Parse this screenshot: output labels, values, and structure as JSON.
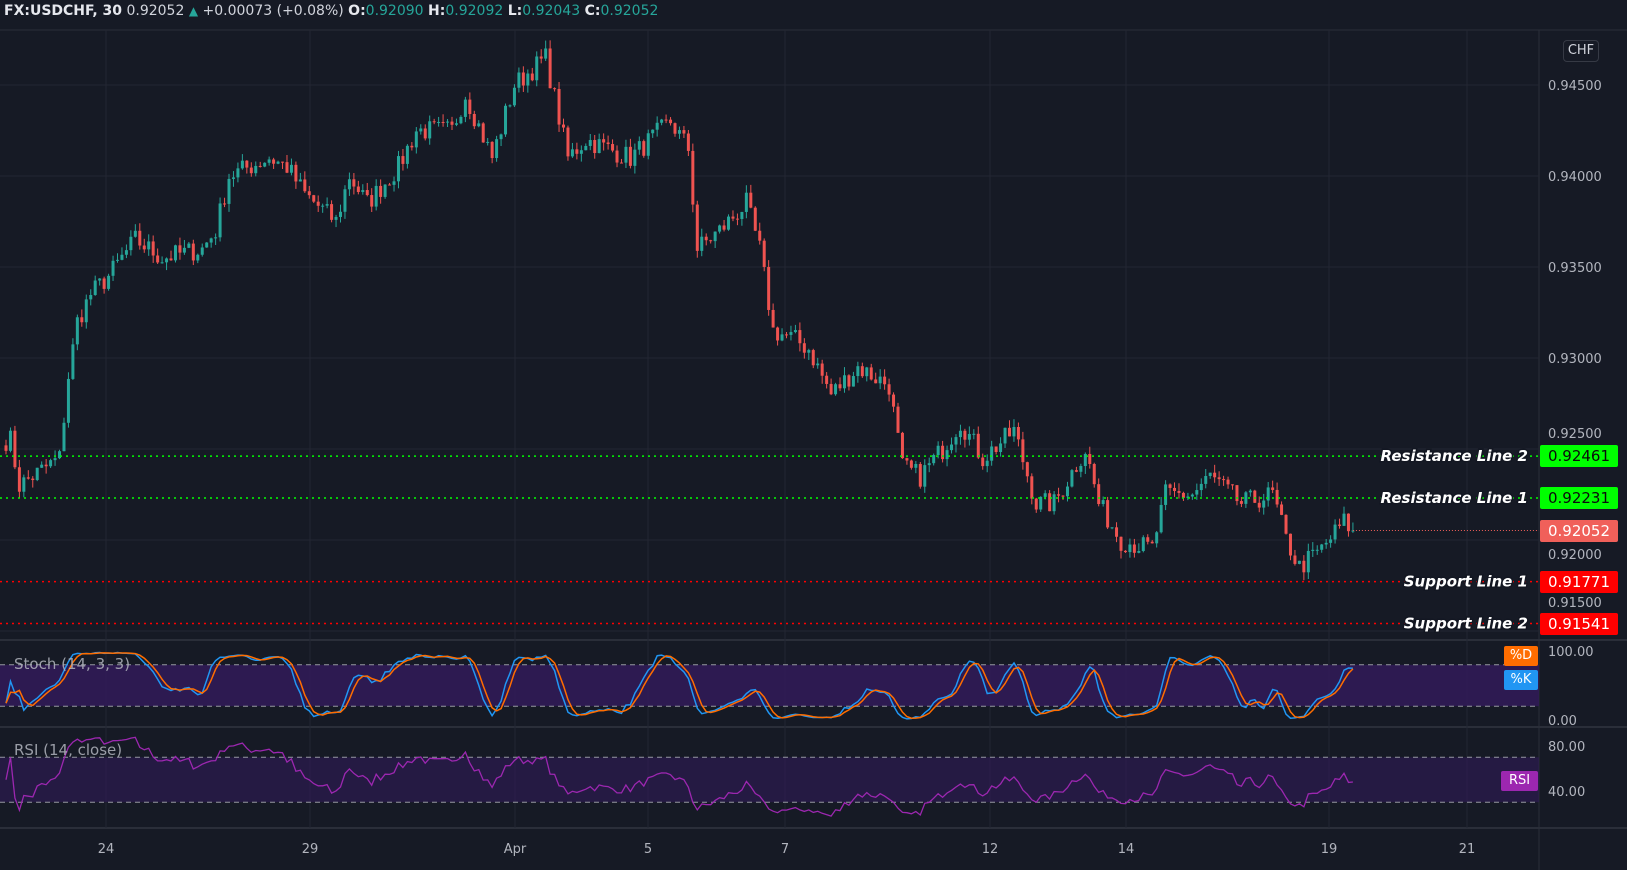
{
  "header": {
    "symbol": "FX:USDCHF, 30",
    "last": "0.92052",
    "change": "+0.00073 (+0.08%)",
    "o_label": "O:",
    "o": "0.92090",
    "h_label": "H:",
    "h": "0.92092",
    "l_label": "L:",
    "l": "0.92043",
    "c_label": "C:",
    "c": "0.92052"
  },
  "currency_badge": "CHF",
  "colors": {
    "up": "#26a69a",
    "down": "#ef5350",
    "resistance": "#00ff00",
    "support": "#ff0000",
    "last_price": "#f0605a",
    "stoch_k": "#2196f3",
    "stoch_d": "#ff6d00",
    "rsi": "#9c27b0",
    "band_fill": "#311b59"
  },
  "price_axis": {
    "ticks": [
      "0.94500",
      "0.94000",
      "0.93500",
      "0.93000",
      "0.92500",
      "0.92000",
      "0.91500"
    ]
  },
  "time_axis": {
    "ticks": [
      "24",
      "29",
      "Apr",
      "5",
      "7",
      "12",
      "14",
      "19",
      "21"
    ]
  },
  "levels": [
    {
      "label": "Resistance Line 2",
      "value": "0.92461",
      "type": "resistance"
    },
    {
      "label": "Resistance Line 1",
      "value": "0.92231",
      "type": "resistance"
    },
    {
      "label": "Support Line 1",
      "value": "0.91771",
      "type": "support"
    },
    {
      "label": "Support Line 2",
      "value": "0.91541",
      "type": "support"
    }
  ],
  "last_price_tag": "0.92052",
  "stoch": {
    "title": "Stoch (14, 3, 3)",
    "d_tag": "%D",
    "k_tag": "%K",
    "ticks": [
      "100.00",
      "0.00"
    ],
    "bands": [
      80,
      20
    ]
  },
  "rsi": {
    "title": "RSI (14, close)",
    "tag": "RSI",
    "ticks": [
      "80.00",
      "40.00"
    ],
    "bands": [
      70,
      30
    ]
  },
  "chart_data": {
    "type": "candlestick",
    "symbol": "FX:USDCHF",
    "interval": "30",
    "ylim": [
      0.9145,
      0.9475
    ],
    "close_path_by_bar": [
      [
        1,
        0.9255
      ],
      [
        3,
        0.923
      ],
      [
        12,
        0.9245
      ],
      [
        14,
        0.929
      ],
      [
        16,
        0.932
      ],
      [
        19,
        0.9335
      ],
      [
        23,
        0.9345
      ],
      [
        29,
        0.9365
      ],
      [
        35,
        0.9355
      ],
      [
        44,
        0.936
      ],
      [
        47,
        0.937
      ],
      [
        50,
        0.94
      ],
      [
        59,
        0.941
      ],
      [
        63,
        0.9405
      ],
      [
        67,
        0.939
      ],
      [
        74,
        0.9375
      ],
      [
        77,
        0.94
      ],
      [
        81,
        0.9385
      ],
      [
        88,
        0.9405
      ],
      [
        92,
        0.9425
      ],
      [
        100,
        0.9425
      ],
      [
        103,
        0.9445
      ],
      [
        109,
        0.941
      ],
      [
        114,
        0.945
      ],
      [
        121,
        0.9465
      ],
      [
        126,
        0.941
      ],
      [
        130,
        0.942
      ],
      [
        140,
        0.941
      ],
      [
        149,
        0.943
      ],
      [
        153,
        0.9415
      ],
      [
        155,
        0.936
      ],
      [
        160,
        0.937
      ],
      [
        166,
        0.9385
      ],
      [
        169,
        0.936
      ],
      [
        172,
        0.9315
      ],
      [
        177,
        0.931
      ],
      [
        180,
        0.9305
      ],
      [
        185,
        0.928
      ],
      [
        191,
        0.9295
      ],
      [
        198,
        0.9285
      ],
      [
        201,
        0.924
      ],
      [
        205,
        0.9235
      ],
      [
        210,
        0.925
      ],
      [
        214,
        0.9265
      ],
      [
        219,
        0.9245
      ],
      [
        226,
        0.926
      ],
      [
        231,
        0.922
      ],
      [
        235,
        0.922
      ],
      [
        242,
        0.925
      ],
      [
        245,
        0.922
      ],
      [
        250,
        0.92
      ],
      [
        257,
        0.9195
      ],
      [
        260,
        0.9225
      ],
      [
        266,
        0.9225
      ],
      [
        270,
        0.9235
      ],
      [
        277,
        0.922
      ],
      [
        284,
        0.9225
      ],
      [
        287,
        0.92
      ],
      [
        290,
        0.9185
      ],
      [
        295,
        0.9195
      ],
      [
        300,
        0.921
      ],
      [
        302,
        0.92052
      ]
    ]
  }
}
